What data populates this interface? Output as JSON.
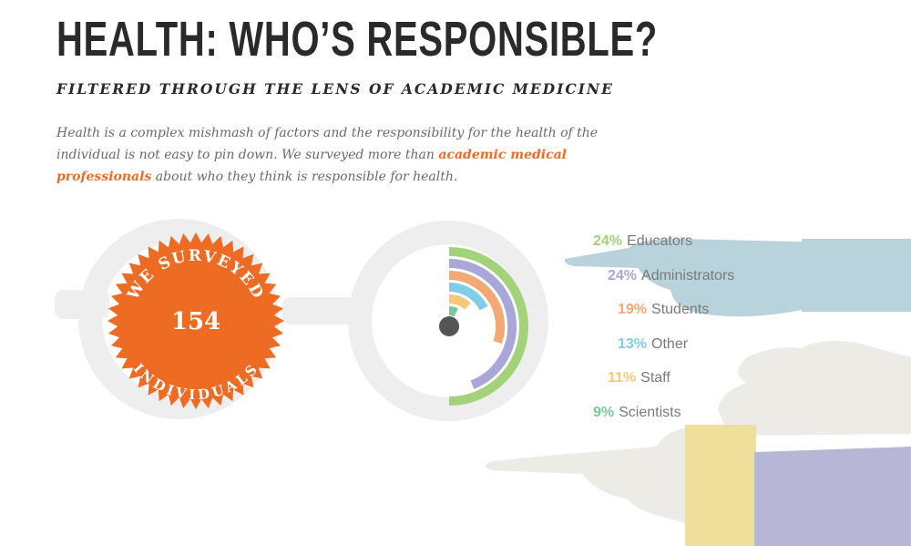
{
  "header": {
    "title": "HEALTH: WHO’S RESPONSIBLE?",
    "subtitle": "FILTERED THROUGH THE LENS OF ACADEMIC MEDICINE"
  },
  "intro": {
    "text_before": "Health is a complex mishmash of factors and the responsibility for the health of the individual is not easy to pin down. We surveyed more than ",
    "highlight": "academic medical professionals",
    "text_after": " about who they think is responsible for health."
  },
  "badge": {
    "top_text": "WE SURVEYED",
    "number": "154",
    "bottom_text": "INDIVIDUALS",
    "color": "#ee6b24"
  },
  "chart_data": {
    "type": "pie",
    "title": "",
    "categories": [
      "Educators",
      "Administrators",
      "Students",
      "Other",
      "Staff",
      "Scientists"
    ],
    "values": [
      24,
      24,
      19,
      13,
      11,
      9
    ],
    "labels": [
      "24%",
      "24%",
      "19%",
      "13%",
      "11%",
      "9%"
    ],
    "colors": [
      "#a4d27a",
      "#a9a6d8",
      "#f4a874",
      "#7fcde6",
      "#f8c87a",
      "#79c995"
    ],
    "legend_position": "right"
  },
  "palette": {
    "glasses": "#eeeeee",
    "center_dot": "#555555",
    "hand": "#ecebe6",
    "blue_sleeve": "#b9d3dc",
    "yellow_sleeve": "#eee09a",
    "purple_sleeve": "#b7b6d6"
  }
}
